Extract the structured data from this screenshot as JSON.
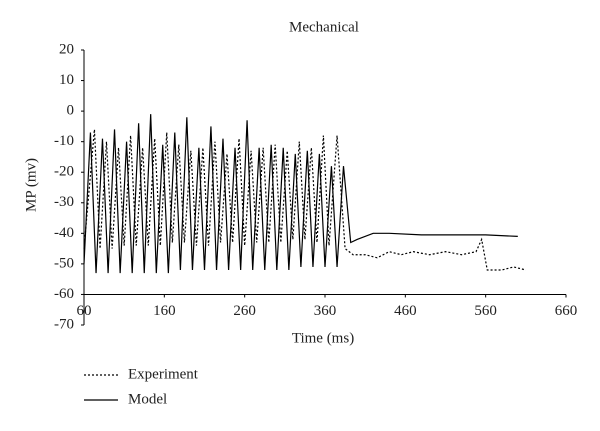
{
  "chart_data": {
    "type": "line",
    "title": "Mechanical",
    "x_label": "Time (ms)",
    "y_label": "MP (mv)",
    "xlim": [
      60,
      660
    ],
    "xticks": [
      60,
      160,
      260,
      360,
      460,
      560,
      660
    ],
    "ylim": [
      -70,
      20
    ],
    "yticks": [
      20,
      10,
      0,
      -10,
      -20,
      -30,
      -40,
      -50,
      -60,
      -70
    ],
    "legend": "bottom-left",
    "series": [
      {
        "name": "Experiment",
        "color": "#000000",
        "dash": "2,2",
        "x": [
          60,
          73,
          80,
          88,
          95,
          103,
          110,
          118,
          125,
          133,
          140,
          148,
          155,
          163,
          170,
          178,
          185,
          193,
          200,
          208,
          215,
          223,
          230,
          238,
          245,
          253,
          260,
          268,
          275,
          283,
          290,
          298,
          305,
          313,
          320,
          328,
          335,
          343,
          350,
          358,
          365,
          375,
          385,
          395,
          410,
          425,
          440,
          455,
          470,
          490,
          510,
          530,
          548,
          555,
          562,
          580,
          595,
          610
        ],
        "values": [
          -45,
          -6,
          -45,
          -10,
          -45,
          -12,
          -44,
          -8,
          -44,
          -12,
          -44,
          -9,
          -44,
          -7,
          -43,
          -11,
          -43,
          -13,
          -44,
          -12,
          -44,
          -10,
          -43,
          -14,
          -43,
          -9,
          -44,
          -13,
          -43,
          -12,
          -43,
          -11,
          -43,
          -13,
          -42,
          -10,
          -42,
          -12,
          -43,
          -8,
          -44,
          -8,
          -45,
          -47,
          -47,
          -48,
          -46,
          -47,
          -46,
          -47,
          -46,
          -47,
          -46,
          -42,
          -52,
          -52,
          -51,
          -52
        ]
      },
      {
        "name": "Model",
        "color": "#000000",
        "dash": "none",
        "x": [
          60,
          68,
          75,
          83,
          90,
          98,
          105,
          113,
          120,
          128,
          135,
          143,
          150,
          158,
          165,
          173,
          180,
          188,
          195,
          203,
          210,
          218,
          225,
          233,
          240,
          248,
          255,
          263,
          270,
          278,
          285,
          293,
          300,
          308,
          315,
          323,
          330,
          338,
          345,
          353,
          360,
          368,
          375,
          383,
          392,
          400,
          420,
          440,
          480,
          520,
          560,
          600
        ],
        "values": [
          -50,
          -7,
          -53,
          -9,
          -53,
          -6,
          -53,
          -10,
          -53,
          -4,
          -53,
          -1,
          -53,
          -11,
          -53,
          -7,
          -52,
          -2,
          -52,
          -12,
          -52,
          -5,
          -52,
          -9,
          -52,
          -12,
          -52,
          -3,
          -52,
          -12,
          -52,
          -11,
          -52,
          -12,
          -52,
          -14,
          -51,
          -13,
          -51,
          -14,
          -51,
          -18,
          -51,
          -18,
          -43,
          -42,
          -40,
          -40,
          -40.5,
          -40.5,
          -40.5,
          -41
        ]
      }
    ]
  }
}
